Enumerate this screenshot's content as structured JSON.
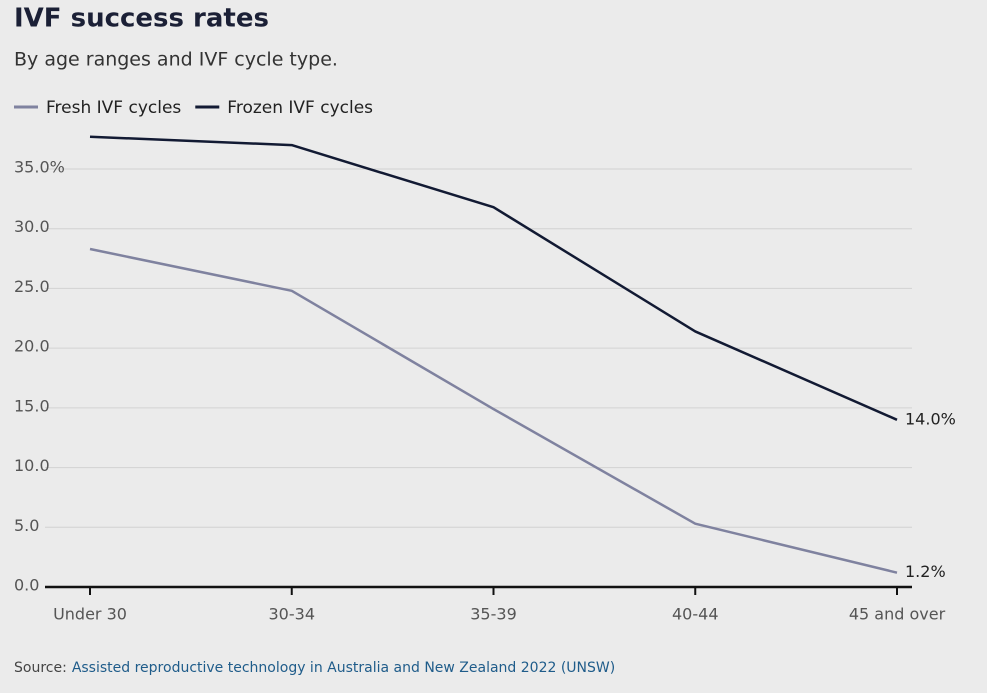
{
  "chart_data": {
    "type": "line",
    "title": "IVF success rates",
    "subtitle": "By age ranges and IVF cycle type.",
    "categories": [
      "Under 30",
      "30-34",
      "35-39",
      "40-44",
      "45 and over"
    ],
    "series": [
      {
        "name": "Fresh IVF cycles",
        "color": "#7f829f",
        "values": [
          28.3,
          24.8,
          14.9,
          5.3,
          1.2
        ],
        "value_labels": [
          null,
          null,
          null,
          null,
          "1.2%"
        ]
      },
      {
        "name": "Frozen IVF cycles",
        "color": "#121a33",
        "values": [
          37.7,
          37.0,
          31.8,
          21.4,
          14.0
        ],
        "value_labels": [
          null,
          null,
          null,
          null,
          "14.0%"
        ]
      }
    ],
    "ylim": [
      0,
      38
    ],
    "yticks": [
      {
        "value": 0,
        "label": "0.0"
      },
      {
        "value": 5,
        "label": "5.0"
      },
      {
        "value": 10,
        "label": "10.0"
      },
      {
        "value": 15,
        "label": "15.0"
      },
      {
        "value": 20,
        "label": "20.0"
      },
      {
        "value": 25,
        "label": "25.0"
      },
      {
        "value": 30,
        "label": "30.0"
      },
      {
        "value": 35,
        "label": "35.0%"
      }
    ],
    "grid": true,
    "legend": "top-left",
    "source": {
      "prefix": "Source:",
      "link": "Assisted reproductive technology in Australia and New Zealand 2022 (UNSW)"
    }
  }
}
